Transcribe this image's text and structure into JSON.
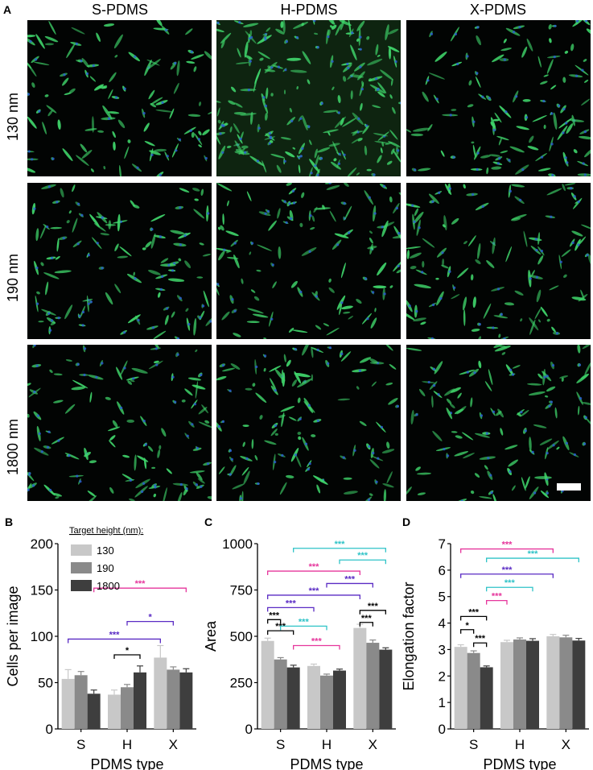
{
  "panels": {
    "A": "A",
    "B": "B",
    "C": "C",
    "D": "D"
  },
  "micrographs": {
    "columns": [
      "S-PDMS",
      "H-PDMS",
      "X-PDMS"
    ],
    "rows": [
      "130 nm",
      "190 nm",
      "1800 nm"
    ]
  },
  "colors": {
    "bar_130": "#c8c8c8",
    "bar_190": "#8a8a8a",
    "bar_1800": "#3e3e3e",
    "sig_magenta": "#e6369c",
    "sig_purple": "#5a2bc4",
    "sig_cyan": "#2fc3c7",
    "sig_black": "#000000",
    "cell_green": "#3fd46a",
    "cell_blue": "#2a5bd8"
  },
  "legend": {
    "title": "Target height (nm):",
    "entries": [
      "130",
      "190",
      "1800"
    ]
  },
  "chart_data": [
    {
      "id": "B",
      "type": "bar",
      "categories": [
        "S",
        "H",
        "X"
      ],
      "xlabel": "PDMS type",
      "ylabel": "Cells per image",
      "ylim": [
        0,
        200
      ],
      "yticks": [
        "0",
        "50",
        "100",
        "150",
        "200"
      ],
      "series": [
        {
          "name": "130",
          "values": [
            54,
            37,
            77
          ],
          "errors": [
            10,
            5,
            13
          ]
        },
        {
          "name": "190",
          "values": [
            58,
            45,
            64
          ],
          "errors": [
            4,
            3,
            3
          ]
        },
        {
          "name": "1800",
          "values": [
            38,
            61,
            61
          ],
          "errors": [
            4,
            7,
            4
          ]
        }
      ],
      "significance": [
        {
          "label": "***",
          "color": "magenta",
          "from": [
            0,
            2
          ],
          "to": [
            2,
            2
          ],
          "y": 152
        },
        {
          "label": "*",
          "color": "purple",
          "from": [
            1,
            1
          ],
          "to": [
            2,
            1
          ],
          "y": 116
        },
        {
          "label": "***",
          "color": "purple",
          "from": [
            0,
            0
          ],
          "to": [
            2,
            0
          ],
          "y": 97
        },
        {
          "label": "*",
          "color": "black",
          "from": [
            1,
            0
          ],
          "to": [
            1,
            2
          ],
          "y": 80
        }
      ]
    },
    {
      "id": "C",
      "type": "bar",
      "categories": [
        "S",
        "H",
        "X"
      ],
      "xlabel": "PDMS type",
      "ylabel": "Area",
      "ylim": [
        0,
        1000
      ],
      "yticks": [
        "0",
        "250",
        "500",
        "750",
        "1000"
      ],
      "series": [
        {
          "name": "130",
          "values": [
            475,
            340,
            545
          ],
          "errors": [
            15,
            10,
            20
          ]
        },
        {
          "name": "190",
          "values": [
            375,
            288,
            465
          ],
          "errors": [
            10,
            8,
            15
          ]
        },
        {
          "name": "1800",
          "values": [
            332,
            315,
            428
          ],
          "errors": [
            12,
            8,
            10
          ]
        }
      ],
      "significance": [
        {
          "label": "***",
          "color": "cyan",
          "from": [
            0,
            2
          ],
          "to": [
            2,
            2
          ],
          "y": 975
        },
        {
          "label": "***",
          "color": "cyan",
          "from": [
            1,
            2
          ],
          "to": [
            2,
            2
          ],
          "y": 912
        },
        {
          "label": "***",
          "color": "magenta",
          "from": [
            0,
            0
          ],
          "to": [
            2,
            0
          ],
          "y": 852
        },
        {
          "label": "***",
          "color": "purple",
          "from": [
            1,
            1
          ],
          "to": [
            2,
            1
          ],
          "y": 785
        },
        {
          "label": "***",
          "color": "purple",
          "from": [
            0,
            0
          ],
          "to": [
            2,
            0
          ],
          "y": 722
        },
        {
          "label": "***",
          "color": "purple",
          "from": [
            0,
            0
          ],
          "to": [
            1,
            0
          ],
          "y": 655
        },
        {
          "label": "***",
          "color": "black",
          "from": [
            0,
            0
          ],
          "to": [
            0,
            1
          ],
          "y": 590
        },
        {
          "label": "***",
          "color": "black",
          "from": [
            0,
            0
          ],
          "to": [
            0,
            2
          ],
          "y": 530
        },
        {
          "label": "***",
          "color": "cyan",
          "from": [
            0,
            1
          ],
          "to": [
            1,
            1
          ],
          "y": 555
        },
        {
          "label": "***",
          "color": "magenta",
          "from": [
            0,
            2
          ],
          "to": [
            1,
            2
          ],
          "y": 450
        },
        {
          "label": "***",
          "color": "black",
          "from": [
            2,
            0
          ],
          "to": [
            2,
            2
          ],
          "y": 640
        },
        {
          "label": "***",
          "color": "black",
          "from": [
            2,
            0
          ],
          "to": [
            2,
            1
          ],
          "y": 575
        }
      ]
    },
    {
      "id": "D",
      "type": "bar",
      "categories": [
        "S",
        "H",
        "X"
      ],
      "xlabel": "PDMS type",
      "ylabel": "Elongation factor",
      "ylim": [
        0,
        7
      ],
      "yticks": [
        "0",
        "1",
        "2",
        "3",
        "4",
        "5",
        "6",
        "7"
      ],
      "series": [
        {
          "name": "130",
          "values": [
            3.1,
            3.28,
            3.5
          ],
          "errors": [
            0.08,
            0.07,
            0.07
          ]
        },
        {
          "name": "190",
          "values": [
            2.87,
            3.38,
            3.46
          ],
          "errors": [
            0.08,
            0.06,
            0.08
          ]
        },
        {
          "name": "1800",
          "values": [
            2.33,
            3.33,
            3.34
          ],
          "errors": [
            0.05,
            0.08,
            0.08
          ]
        }
      ],
      "significance": [
        {
          "label": "***",
          "color": "magenta",
          "from": [
            0,
            0
          ],
          "to": [
            2,
            0
          ],
          "y": 6.8
        },
        {
          "label": "***",
          "color": "cyan",
          "from": [
            0,
            2
          ],
          "to": [
            2,
            2
          ],
          "y": 6.45
        },
        {
          "label": "***",
          "color": "purple",
          "from": [
            0,
            0
          ],
          "to": [
            2,
            0
          ],
          "y": 5.85
        },
        {
          "label": "***",
          "color": "cyan",
          "from": [
            0,
            2
          ],
          "to": [
            1,
            2
          ],
          "y": 5.35
        },
        {
          "label": "***",
          "color": "magenta",
          "from": [
            0,
            2
          ],
          "to": [
            1,
            0
          ],
          "y": 4.85
        },
        {
          "label": "***",
          "color": "black",
          "from": [
            0,
            0
          ],
          "to": [
            0,
            2
          ],
          "y": 4.25
        },
        {
          "label": "*",
          "color": "black",
          "from": [
            0,
            0
          ],
          "to": [
            0,
            1
          ],
          "y": 3.75
        },
        {
          "label": "***",
          "color": "black",
          "from": [
            0,
            1
          ],
          "to": [
            0,
            2
          ],
          "y": 3.25
        }
      ]
    }
  ]
}
